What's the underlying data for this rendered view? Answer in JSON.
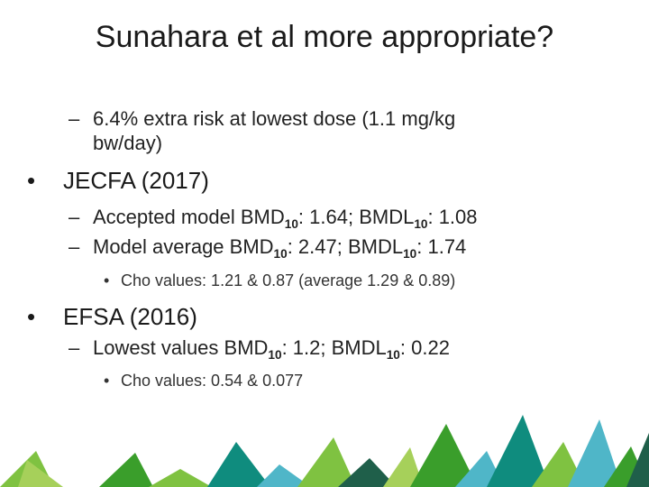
{
  "slide": {
    "title": "Sunahara et al more appropriate?",
    "items": [
      {
        "level": 2,
        "marker": "–",
        "text": "6.4% extra risk at lowest dose (1.1 mg/kg",
        "text_cont": "bw/day)"
      },
      {
        "level": 1,
        "marker": "•",
        "text": "JECFA (2017)"
      },
      {
        "level": 2,
        "marker": "–",
        "pre": "Accepted model BMD",
        "sub1": "10",
        "mid": ": 1.64; BMDL",
        "sub2": "10",
        "post": ": 1.08"
      },
      {
        "level": 2,
        "marker": "–",
        "pre": "Model average BMD",
        "sub1": "10",
        "mid": ": 2.47; BMDL",
        "sub2": "10",
        "post": ": 1.74"
      },
      {
        "level": 3,
        "marker": "•",
        "text": "Cho values: 1.21 & 0.87 (average 1.29 & 0.89)"
      },
      {
        "level": 1,
        "marker": "•",
        "text": "EFSA (2016)"
      },
      {
        "level": 2,
        "marker": "–",
        "pre": "Lowest values BMD",
        "sub1": "10",
        "mid": ": 1.2; BMDL",
        "sub2": "10",
        "post": ": 0.22"
      },
      {
        "level": 3,
        "marker": "•",
        "text": "Cho values: 0.54 & 0.077"
      }
    ]
  },
  "decoration": {
    "colors": [
      "#3a9e2b",
      "#0f8c7e",
      "#4fb6c8",
      "#7fc241",
      "#1f5f4a",
      "#a6d05a"
    ]
  }
}
